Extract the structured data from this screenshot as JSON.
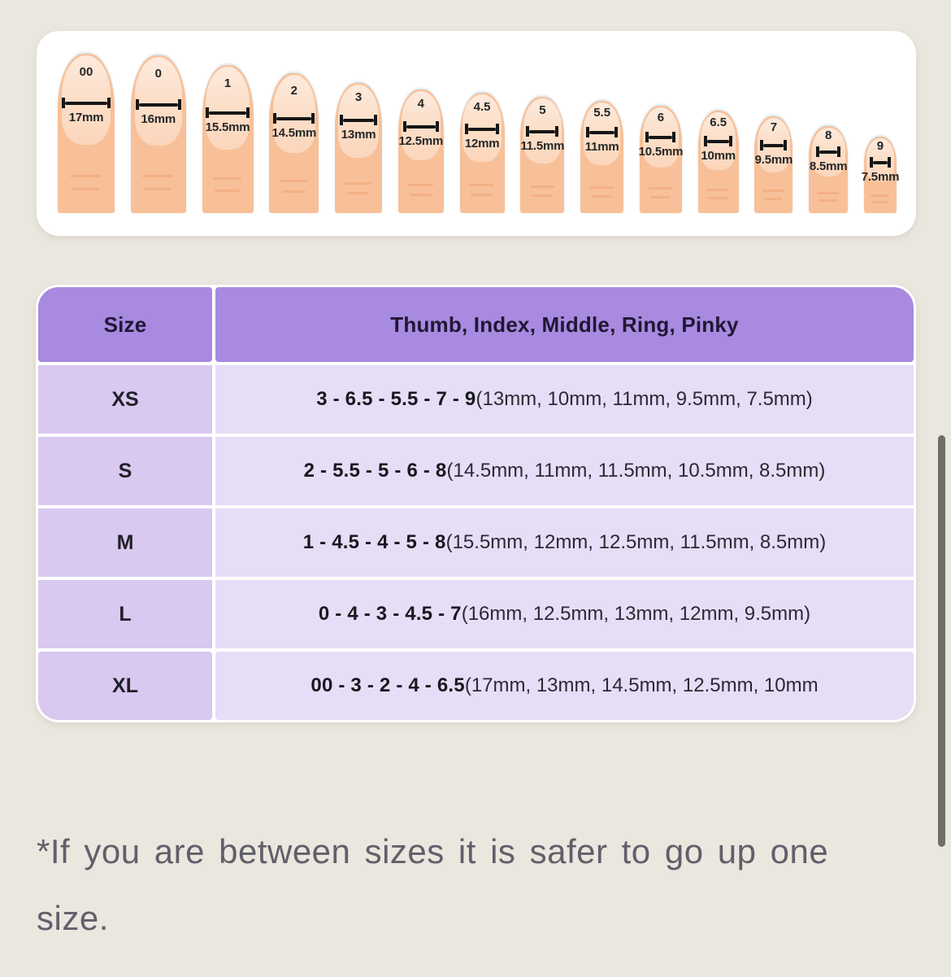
{
  "colors": {
    "page_background": "#eae7df",
    "card_background": "#ffffff",
    "table_header_bg": "#a88ae0",
    "table_size_cell_bg": "#d9c8ef",
    "table_detail_cell_bg": "#e6ddf6",
    "finger_skin": "#f8c098",
    "finger_nail": "#fbd6bc",
    "measure_bar": "#161616",
    "footnote_text": "#615f6a"
  },
  "ruler_card": {
    "fingers": [
      {
        "size": "00",
        "mm": "17mm"
      },
      {
        "size": "0",
        "mm": "16mm"
      },
      {
        "size": "1",
        "mm": "15.5mm"
      },
      {
        "size": "2",
        "mm": "14.5mm"
      },
      {
        "size": "3",
        "mm": "13mm"
      },
      {
        "size": "4",
        "mm": "12.5mm"
      },
      {
        "size": "4.5",
        "mm": "12mm"
      },
      {
        "size": "5",
        "mm": "11.5mm"
      },
      {
        "size": "5.5",
        "mm": "11mm"
      },
      {
        "size": "6",
        "mm": "10.5mm"
      },
      {
        "size": "6.5",
        "mm": "10mm"
      },
      {
        "size": "7",
        "mm": "9.5mm"
      },
      {
        "size": "8",
        "mm": "8.5mm"
      },
      {
        "size": "9",
        "mm": "7.5mm"
      }
    ]
  },
  "size_table": {
    "header": {
      "size_col": "Size",
      "fingers_col": "Thumb, Index, Middle, Ring, Pinky"
    },
    "rows": [
      {
        "size": "XS",
        "combo": "3 - 6.5 - 5.5 - 7 - 9",
        "detail": " (13mm, 10mm, 11mm, 9.5mm, 7.5mm)"
      },
      {
        "size": "S",
        "combo": "2 - 5.5 - 5 - 6 - 8",
        "detail": " (14.5mm, 11mm, 11.5mm, 10.5mm, 8.5mm)"
      },
      {
        "size": "M",
        "combo": "1 - 4.5 - 4 - 5 - 8",
        "detail": " (15.5mm, 12mm, 12.5mm, 11.5mm, 8.5mm)"
      },
      {
        "size": "L",
        "combo": "0 - 4 - 3 - 4.5 - 7",
        "detail": " (16mm, 12.5mm, 13mm, 12mm, 9.5mm)"
      },
      {
        "size": "XL",
        "combo": "00 - 3 - 2 - 4 - 6.5",
        "detail": " (17mm, 13mm, 14.5mm, 12.5mm, 10mm"
      }
    ]
  },
  "footnote": {
    "text": "*If you are between sizes it is safer to go up one size."
  }
}
